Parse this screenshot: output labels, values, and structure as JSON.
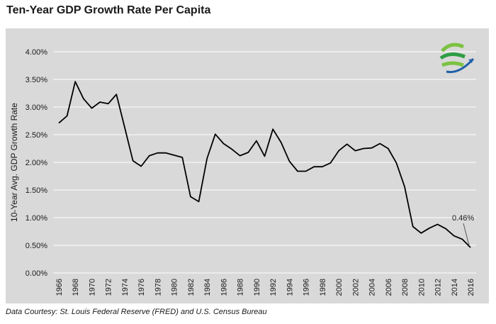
{
  "header": {
    "title": "Ten-Year GDP Growth Rate Per Capita"
  },
  "footer": {
    "source": "Data Courtesy: St. Louis Federal Reserve (FRED) and U.S. Census Bureau"
  },
  "logo": {
    "icon": "globe-arrow-logo-icon",
    "colors": [
      "#2e9d45",
      "#7cc242",
      "#1f5fa8"
    ]
  },
  "colors": {
    "background": "#d9d9d9",
    "line": "#000000",
    "grid": "#ffffff"
  },
  "chart_data": {
    "type": "line",
    "title": "",
    "xlabel": "",
    "ylabel": "10-Year Avg. GDP Growth Rate",
    "ylim": [
      0,
      4.0
    ],
    "yticks": [
      "0.00%",
      "0.50%",
      "1.00%",
      "1.50%",
      "2.00%",
      "2.50%",
      "3.00%",
      "3.50%",
      "4.00%"
    ],
    "xticks": [
      "1966",
      "1968",
      "1970",
      "1972",
      "1974",
      "1976",
      "1978",
      "1980",
      "1982",
      "1984",
      "1986",
      "1988",
      "1990",
      "1992",
      "1994",
      "1996",
      "1998",
      "2000",
      "2002",
      "2004",
      "2006",
      "2008",
      "2010",
      "2012",
      "2014",
      "2016"
    ],
    "grid": true,
    "series": [
      {
        "x": [
          1966,
          1967,
          1968,
          1969,
          1970,
          1971,
          1972,
          1973,
          1974,
          1975,
          1976,
          1977,
          1978,
          1979,
          1980,
          1981,
          1982,
          1983,
          1984,
          1985,
          1986,
          1987,
          1988,
          1989,
          1990,
          1991,
          1992,
          1993,
          1994,
          1995,
          1996,
          1997,
          1998,
          1999,
          2000,
          2001,
          2002,
          2003,
          2004,
          2005,
          2006,
          2007,
          2008,
          2009,
          2010,
          2011,
          2012,
          2013,
          2014,
          2015,
          2016
        ],
        "values": [
          2.71,
          2.84,
          3.46,
          3.15,
          2.98,
          3.09,
          3.06,
          3.23,
          2.63,
          2.03,
          1.93,
          2.12,
          2.17,
          2.17,
          2.13,
          2.09,
          1.38,
          1.29,
          2.07,
          2.51,
          2.34,
          2.24,
          2.12,
          2.18,
          2.39,
          2.11,
          2.6,
          2.36,
          2.02,
          1.84,
          1.84,
          1.92,
          1.92,
          1.99,
          2.21,
          2.33,
          2.21,
          2.25,
          2.26,
          2.34,
          2.25,
          1.99,
          1.56,
          0.84,
          0.72,
          0.81,
          0.88,
          0.8,
          0.67,
          0.61,
          0.46
        ]
      }
    ],
    "annotations": [
      {
        "x": 2016,
        "y": 0.46,
        "text": "0.46%"
      }
    ]
  }
}
